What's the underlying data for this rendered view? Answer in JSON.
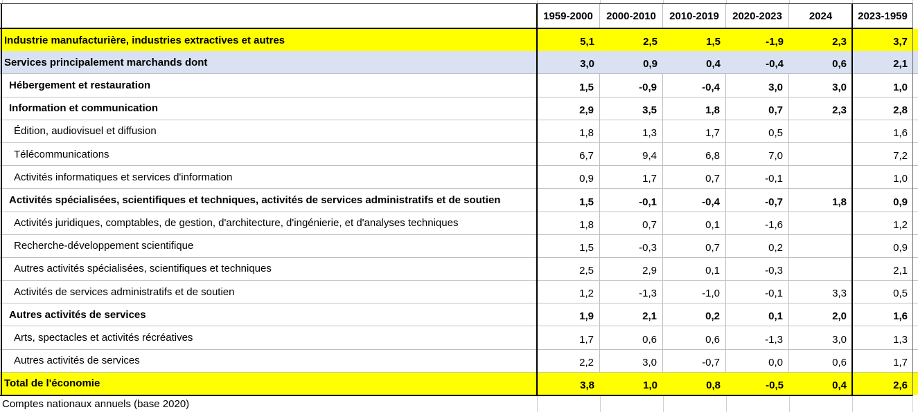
{
  "chart_data": {
    "type": "table",
    "first_column_header": "",
    "columns": [
      "1959-2000",
      "2000-2010",
      "2010-2019",
      "2020-2023",
      "2024",
      "2023-1959"
    ],
    "rows": [
      {
        "label": "Industrie manufacturière, industries extractives et autres",
        "style": "yellow",
        "bold": true,
        "indent": 0,
        "values": [
          "5,1",
          "2,5",
          "1,5",
          "-1,9",
          "2,3",
          "3,7"
        ]
      },
      {
        "label": "Services principalement marchands dont",
        "style": "blue",
        "bold": true,
        "indent": 0,
        "values": [
          "3,0",
          "0,9",
          "0,4",
          "-0,4",
          "0,6",
          "2,1"
        ]
      },
      {
        "label": "Hébergement et restauration",
        "style": "white",
        "bold": true,
        "indent": 1,
        "values": [
          "1,5",
          "-0,9",
          "-0,4",
          "3,0",
          "3,0",
          "1,0"
        ]
      },
      {
        "label": "Information et communication",
        "style": "white",
        "bold": true,
        "indent": 1,
        "values": [
          "2,9",
          "3,5",
          "1,8",
          "0,7",
          "2,3",
          "2,8"
        ]
      },
      {
        "label": "Édition, audiovisuel et diffusion",
        "style": "white",
        "bold": false,
        "indent": 2,
        "values": [
          "1,8",
          "1,3",
          "1,7",
          "0,5",
          "",
          "1,6"
        ]
      },
      {
        "label": "Télécommunications",
        "style": "white",
        "bold": false,
        "indent": 2,
        "values": [
          "6,7",
          "9,4",
          "6,8",
          "7,0",
          "",
          "7,2"
        ]
      },
      {
        "label": "Activités informatiques et services d'information",
        "style": "white",
        "bold": false,
        "indent": 2,
        "values": [
          "0,9",
          "1,7",
          "0,7",
          "-0,1",
          "",
          "1,0"
        ]
      },
      {
        "label": "Activités spécialisées, scientifiques et techniques, activités de services administratifs et de soutien",
        "style": "white",
        "bold": true,
        "indent": 1,
        "values": [
          "1,5",
          "-0,1",
          "-0,4",
          "-0,7",
          "1,8",
          "0,9"
        ]
      },
      {
        "label": "Activités juridiques, comptables, de gestion, d'architecture, d'ingénierie, et d'analyses techniques",
        "style": "white",
        "bold": false,
        "indent": 2,
        "values": [
          "1,8",
          "0,7",
          "0,1",
          "-1,6",
          "",
          "1,2"
        ]
      },
      {
        "label": "Recherche-développement scientifique",
        "style": "white",
        "bold": false,
        "indent": 2,
        "values": [
          "1,5",
          "-0,3",
          "0,7",
          "0,2",
          "",
          "0,9"
        ]
      },
      {
        "label": "Autres activités spécialisées, scientifiques et techniques",
        "style": "white",
        "bold": false,
        "indent": 2,
        "values": [
          "2,5",
          "2,9",
          "0,1",
          "-0,3",
          "",
          "2,1"
        ]
      },
      {
        "label": "Activités de services administratifs et de soutien",
        "style": "white",
        "bold": false,
        "indent": 2,
        "values": [
          "1,2",
          "-1,3",
          "-1,0",
          "-0,1",
          "3,3",
          "0,5"
        ]
      },
      {
        "label": "Autres activités de services",
        "style": "white",
        "bold": true,
        "indent": 1,
        "values": [
          "1,9",
          "2,1",
          "0,2",
          "0,1",
          "2,0",
          "1,6"
        ]
      },
      {
        "label": "Arts, spectacles et activités récréatives",
        "style": "white",
        "bold": false,
        "indent": 2,
        "values": [
          "1,7",
          "0,6",
          "0,6",
          "-1,3",
          "3,0",
          "1,3"
        ]
      },
      {
        "label": "Autres activités de services",
        "style": "white",
        "bold": false,
        "indent": 2,
        "values": [
          "2,2",
          "3,0",
          "-0,7",
          "0,0",
          "0,6",
          "1,7"
        ]
      },
      {
        "label": "Total de l'économie",
        "style": "yellow",
        "bold": true,
        "indent": 0,
        "values": [
          "3,8",
          "1,0",
          "0,8",
          "-0,5",
          "0,4",
          "2,6"
        ]
      }
    ],
    "source": "Comptes nationaux annuels (base 2020)",
    "layout": {
      "legend_position": "none",
      "grid": true
    },
    "colors": {
      "highlight_yellow": "#ffff00",
      "highlight_blue": "#d9e1f2",
      "grid_light": "#bfbfbf",
      "border_dark": "#000000"
    }
  }
}
